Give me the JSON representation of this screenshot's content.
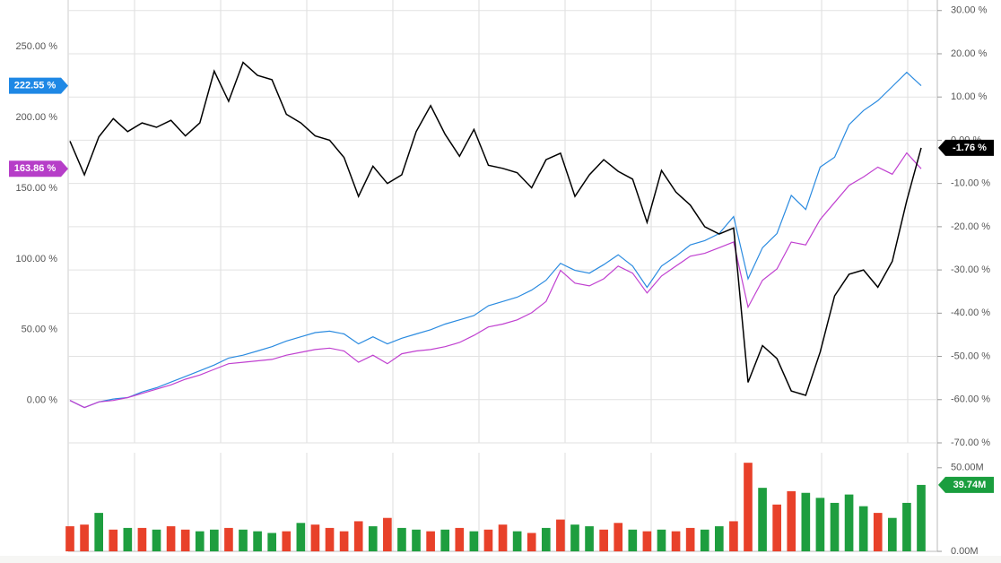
{
  "chart_data": [
    {
      "type": "line",
      "ylim": [
        -30,
        280
      ],
      "yticks": [
        {
          "value": 0,
          "label": "0.00 %"
        },
        {
          "value": 50,
          "label": "50.00 %"
        },
        {
          "value": 100,
          "label": "100.00 %"
        },
        {
          "value": 150,
          "label": "150.00 %"
        },
        {
          "value": 200,
          "label": "200.00 %"
        },
        {
          "value": 250,
          "label": "250.00 %"
        }
      ],
      "y2lim": [
        -70,
        31.4
      ],
      "y2ticks": [
        {
          "value": -70,
          "label": "-70.00 %"
        },
        {
          "value": -60,
          "label": "-60.00 %"
        },
        {
          "value": -50,
          "label": "-50.00 %"
        },
        {
          "value": -40,
          "label": "-40.00 %"
        },
        {
          "value": -30,
          "label": "-30.00 %"
        },
        {
          "value": -20,
          "label": "-20.00 %"
        },
        {
          "value": -10,
          "label": "-10.00 %"
        },
        {
          "value": 0,
          "label": "0.00 %"
        },
        {
          "value": 10,
          "label": "10.00 %"
        },
        {
          "value": 20,
          "label": "20.00 %"
        },
        {
          "value": 30,
          "label": "30.00 %"
        }
      ],
      "grid": true,
      "series": [
        {
          "color": "#2b8be0",
          "flag_color": "#1e88e5",
          "axis": "y",
          "values": [
            0,
            -5,
            -1,
            1,
            2,
            6,
            9,
            13,
            17,
            21,
            25,
            30,
            32,
            35,
            38,
            42,
            45,
            48,
            49,
            47,
            40,
            45,
            40,
            44,
            47,
            50,
            54,
            57,
            60,
            67,
            70,
            73,
            78,
            85,
            97,
            92,
            90,
            96,
            103,
            95,
            80,
            95,
            102,
            110,
            113,
            118,
            130,
            86,
            108,
            118,
            145,
            135,
            165,
            172,
            195,
            205,
            212,
            222,
            232,
            222.55
          ],
          "value_labels": [
            null,
            null,
            null,
            null,
            null,
            null,
            null,
            null,
            null,
            null,
            null,
            null,
            null,
            null,
            null,
            null,
            null,
            null,
            null,
            null,
            null,
            null,
            null,
            null,
            null,
            null,
            null,
            null,
            null,
            null,
            null,
            null,
            null,
            null,
            null,
            null,
            null,
            null,
            null,
            null,
            null,
            null,
            null,
            null,
            null,
            null,
            null,
            null,
            null,
            null,
            null,
            null,
            null,
            null,
            null,
            null,
            null,
            null,
            null,
            "222.55 %"
          ]
        },
        {
          "color": "#c040d0",
          "flag_color": "#b63ec8",
          "axis": "y",
          "values": [
            0,
            -5,
            -1,
            0,
            2,
            5,
            8,
            11,
            15,
            18,
            22,
            26,
            27,
            28,
            29,
            32,
            34,
            36,
            37,
            35,
            27,
            32,
            26,
            33,
            35,
            36,
            38,
            41,
            46,
            52,
            54,
            57,
            62,
            70,
            92,
            83,
            81,
            86,
            95,
            90,
            76,
            88,
            95,
            102,
            104,
            108,
            112,
            66,
            85,
            93,
            112,
            110,
            128,
            140,
            152,
            158,
            165,
            160,
            175,
            163.86
          ],
          "value_labels": [
            null,
            null,
            null,
            null,
            null,
            null,
            null,
            null,
            null,
            null,
            null,
            null,
            null,
            null,
            null,
            null,
            null,
            null,
            null,
            null,
            null,
            null,
            null,
            null,
            null,
            null,
            null,
            null,
            null,
            null,
            null,
            null,
            null,
            null,
            null,
            null,
            null,
            null,
            null,
            null,
            null,
            null,
            null,
            null,
            null,
            null,
            null,
            null,
            null,
            null,
            null,
            null,
            null,
            null,
            null,
            null,
            null,
            null,
            null,
            "163.86 %"
          ]
        },
        {
          "color": "#000000",
          "flag_color": "#000000",
          "axis": "y2",
          "values": [
            -0.2,
            -8,
            0.8,
            5,
            2,
            4,
            3,
            4.6,
            1,
            4,
            16,
            9,
            18,
            15,
            14,
            6,
            4,
            1,
            0,
            -4,
            -13,
            -6,
            -10,
            -8,
            2,
            8,
            1.4,
            -3.7,
            2.5,
            -5.8,
            -6.5,
            -7.5,
            -11,
            -4.5,
            -3,
            -13,
            -8,
            -4.5,
            -7.2,
            -9,
            -19,
            -7,
            -12,
            -15,
            -20,
            -21.7,
            -20.3,
            -56,
            -47.5,
            -50.5,
            -58,
            -59,
            -49,
            -36,
            -31,
            -30,
            -34,
            -28,
            -14,
            -1.76
          ],
          "value_labels": [
            null,
            null,
            null,
            null,
            null,
            null,
            null,
            null,
            null,
            null,
            null,
            null,
            null,
            null,
            null,
            null,
            null,
            null,
            null,
            null,
            null,
            null,
            null,
            null,
            null,
            null,
            null,
            null,
            null,
            null,
            null,
            null,
            null,
            null,
            null,
            null,
            null,
            null,
            null,
            null,
            null,
            null,
            null,
            null,
            null,
            null,
            null,
            null,
            null,
            null,
            null,
            null,
            null,
            null,
            null,
            null,
            null,
            null,
            null,
            "-1.76 %"
          ]
        }
      ]
    },
    {
      "type": "bar",
      "ylim": [
        0,
        59
      ],
      "yticks": [
        {
          "value": 0,
          "label": "0.00M"
        },
        {
          "value": 50,
          "label": "50.00M"
        }
      ],
      "flag_color": "#1a9e3e",
      "values": [
        15,
        16,
        23,
        13,
        14,
        14,
        13,
        15,
        13,
        12,
        13,
        14,
        13,
        12,
        11,
        12,
        17,
        16,
        14,
        12,
        18,
        15,
        20,
        14,
        13,
        12,
        13,
        14,
        12,
        13,
        16,
        12,
        11,
        14,
        19,
        16,
        15,
        13,
        17,
        13,
        12,
        13,
        12,
        14,
        13,
        15,
        18,
        53,
        38,
        28,
        36,
        35,
        32,
        29,
        34,
        27,
        23,
        20,
        29,
        39.74
      ],
      "value_labels": [
        null,
        null,
        null,
        null,
        null,
        null,
        null,
        null,
        null,
        null,
        null,
        null,
        null,
        null,
        null,
        null,
        null,
        null,
        null,
        null,
        null,
        null,
        null,
        null,
        null,
        null,
        null,
        null,
        null,
        null,
        null,
        null,
        null,
        null,
        null,
        null,
        null,
        null,
        null,
        null,
        null,
        null,
        null,
        null,
        null,
        null,
        null,
        null,
        null,
        null,
        null,
        null,
        null,
        null,
        null,
        null,
        null,
        null,
        null,
        "39.74M"
      ],
      "colors": [
        "#e8412a",
        "#e8412a",
        "#1e9e3f",
        "#e8412a",
        "#1e9e3f",
        "#e8412a",
        "#1e9e3f",
        "#e8412a",
        "#e8412a",
        "#1e9e3f",
        "#1e9e3f",
        "#e8412a",
        "#1e9e3f",
        "#1e9e3f",
        "#1e9e3f",
        "#e8412a",
        "#1e9e3f",
        "#e8412a",
        "#e8412a",
        "#e8412a",
        "#e8412a",
        "#1e9e3f",
        "#e8412a",
        "#1e9e3f",
        "#1e9e3f",
        "#e8412a",
        "#1e9e3f",
        "#e8412a",
        "#1e9e3f",
        "#e8412a",
        "#e8412a",
        "#1e9e3f",
        "#e8412a",
        "#1e9e3f",
        "#e8412a",
        "#1e9e3f",
        "#1e9e3f",
        "#e8412a",
        "#e8412a",
        "#1e9e3f",
        "#e8412a",
        "#1e9e3f",
        "#e8412a",
        "#e8412a",
        "#1e9e3f",
        "#1e9e3f",
        "#e8412a",
        "#e8412a",
        "#1e9e3f",
        "#e8412a",
        "#e8412a",
        "#1e9e3f",
        "#1e9e3f",
        "#1e9e3f",
        "#1e9e3f",
        "#1e9e3f",
        "#e8412a",
        "#1e9e3f",
        "#1e9e3f",
        "#1e9e3f"
      ]
    }
  ]
}
